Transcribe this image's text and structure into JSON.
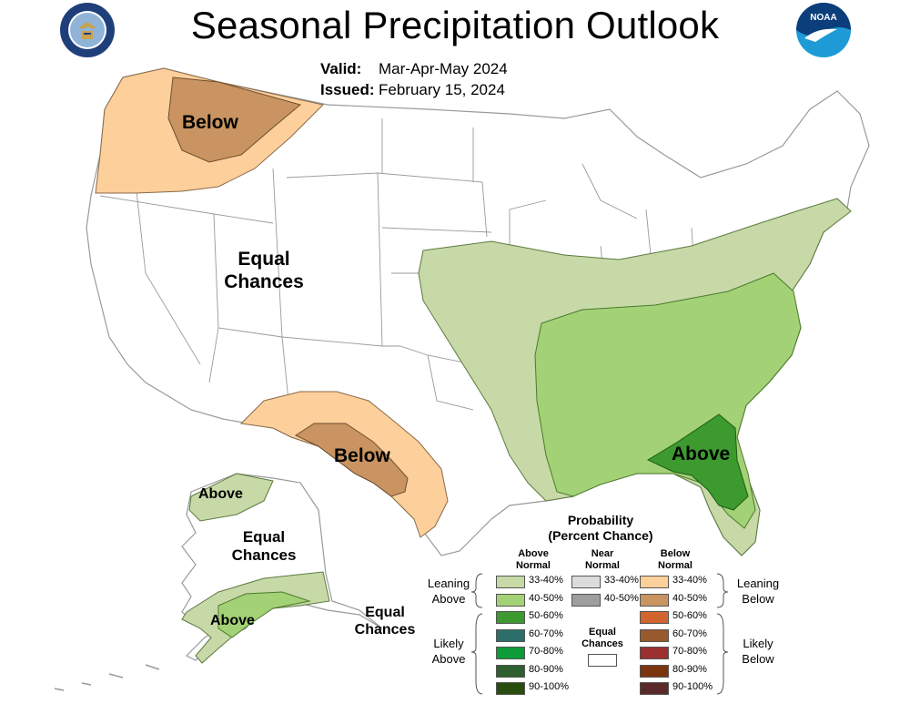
{
  "title": "Seasonal Precipitation Outlook",
  "valid_label": "Valid:",
  "valid_value": "Mar-Apr-May 2024",
  "issued_label": "Issued:",
  "issued_value": "February 15, 2024",
  "logos": {
    "left": "department-of-commerce-seal",
    "right": "noaa-logo",
    "right_text": "NOAA"
  },
  "map_labels": {
    "below_nw": "Below",
    "equal_west_1": "Equal",
    "equal_west_2": "Chances",
    "below_sw": "Below",
    "above_se": "Above",
    "ak_above_n": "Above",
    "ak_equal_1": "Equal",
    "ak_equal_2": "Chances",
    "ak_above_s": "Above",
    "ak_equal_e_1": "Equal",
    "ak_equal_e_2": "Chances"
  },
  "legend": {
    "title_1": "Probability",
    "title_2": "(Percent Chance)",
    "above_head": "Above Normal",
    "near_head": "Near Normal",
    "below_head": "Below Normal",
    "leaning_above": "Leaning Above",
    "likely_above": "Likely Above",
    "leaning_below": "Leaning Below",
    "likely_below": "Likely Below",
    "equal_chances": "Equal Chances",
    "above": [
      {
        "label": "33-40%",
        "color": "#c6d9a7"
      },
      {
        "label": "40-50%",
        "color": "#a3d276"
      },
      {
        "label": "50-60%",
        "color": "#3c9a2e"
      },
      {
        "label": "60-70%",
        "color": "#2b6e6a"
      },
      {
        "label": "70-80%",
        "color": "#0d9b3a"
      },
      {
        "label": "80-90%",
        "color": "#2f5f2e"
      },
      {
        "label": "90-100%",
        "color": "#284d0e"
      }
    ],
    "near": [
      {
        "label": "33-40%",
        "color": "#dcdcdc"
      },
      {
        "label": "40-50%",
        "color": "#9e9e9e"
      }
    ],
    "below": [
      {
        "label": "33-40%",
        "color": "#fdcf9b"
      },
      {
        "label": "40-50%",
        "color": "#c99461"
      },
      {
        "label": "50-60%",
        "color": "#d2652f"
      },
      {
        "label": "60-70%",
        "color": "#985a2c"
      },
      {
        "label": "70-80%",
        "color": "#9c2f2f"
      },
      {
        "label": "80-90%",
        "color": "#7a3510"
      },
      {
        "label": "90-100%",
        "color": "#5a2a2a"
      }
    ]
  }
}
